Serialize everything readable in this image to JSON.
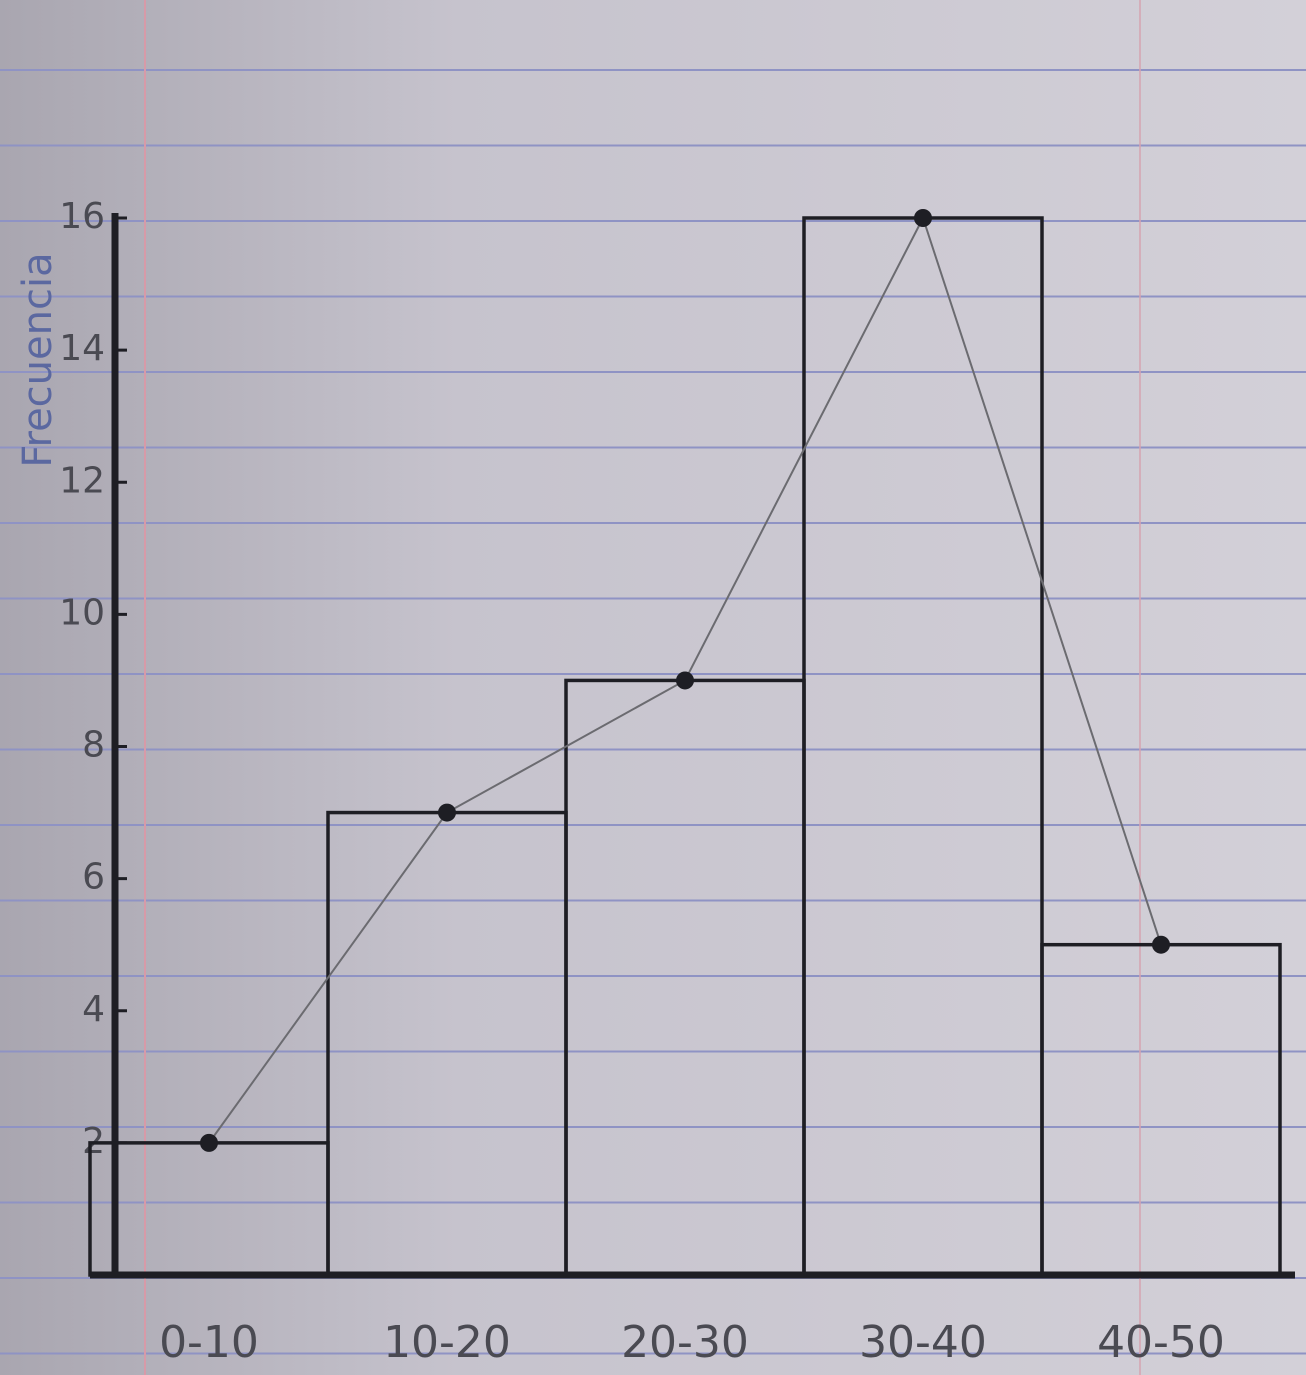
{
  "chart_data": {
    "type": "histogram",
    "y_label": "Frecuencia",
    "categories": [
      "0-10",
      "10-20",
      "20-30",
      "30-40",
      "40-50"
    ],
    "values": [
      2,
      7,
      9,
      16,
      5
    ],
    "color": "#1e1e24",
    "polygon": true,
    "ylim": [
      0,
      16
    ],
    "yticks": [
      2,
      4,
      6,
      8,
      10,
      12,
      14,
      16
    ]
  }
}
